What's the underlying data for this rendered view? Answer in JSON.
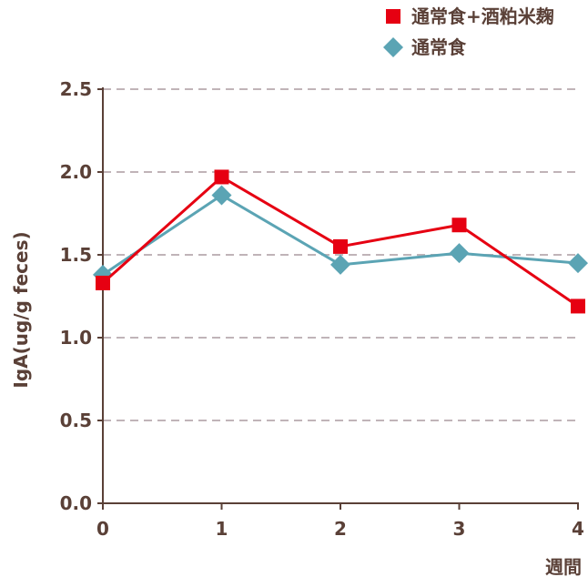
{
  "chart_data": {
    "type": "line",
    "title": "",
    "xlabel": "週間",
    "ylabel": "IgA(ug/g feces)",
    "x": [
      0,
      1,
      2,
      3,
      4
    ],
    "ylim": [
      0,
      2.5
    ],
    "yticks": [
      "0.0",
      "0.5",
      "1.0",
      "1.5",
      "2.0",
      "2.5"
    ],
    "xticks": [
      "0",
      "1",
      "2",
      "3",
      "4"
    ],
    "grid": true,
    "legend_position": "top-right",
    "series": [
      {
        "name": "通常食+酒粕米麹",
        "marker": "square",
        "color": "#e60012",
        "values": [
          1.33,
          1.97,
          1.55,
          1.68,
          1.19
        ]
      },
      {
        "name": "通常食",
        "marker": "diamond",
        "color": "#5ba4b4",
        "values": [
          1.38,
          1.86,
          1.44,
          1.51,
          1.45
        ]
      }
    ]
  },
  "colors": {
    "axis": "#5a4037",
    "grid": "#c0b4b8"
  }
}
